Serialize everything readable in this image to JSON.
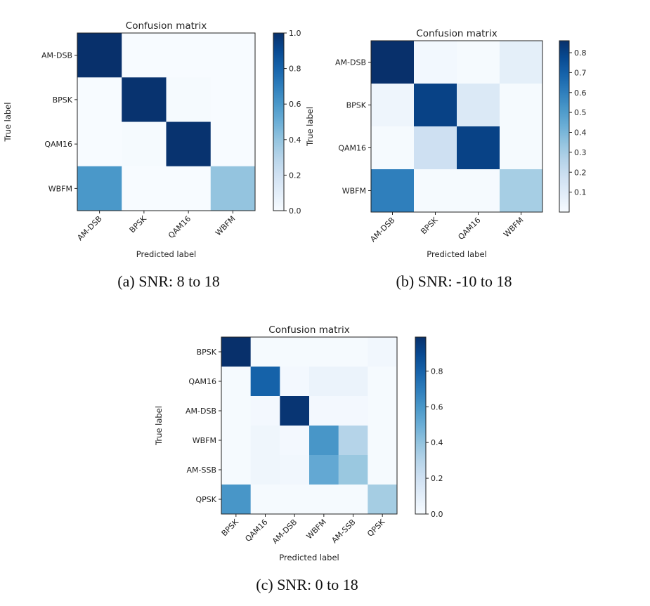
{
  "chart_data": [
    {
      "type": "heatmap",
      "title": "Confusion matrix",
      "xlabel": "Predicted label",
      "ylabel": "True label",
      "caption": "(a) SNR: 8 to 18",
      "rows": [
        "AM-DSB",
        "BPSK",
        "QAM16",
        "WBFM"
      ],
      "cols": [
        "AM-DSB",
        "BPSK",
        "QAM16",
        "WBFM"
      ],
      "values": [
        [
          1.0,
          0.0,
          0.0,
          0.0
        ],
        [
          0.0,
          0.99,
          0.01,
          0.0
        ],
        [
          0.0,
          0.01,
          0.99,
          0.0
        ],
        [
          0.6,
          0.0,
          0.0,
          0.4
        ]
      ],
      "colorbar": {
        "min": 0.0,
        "max": 1.0,
        "ticks": [
          "0.0",
          "0.2",
          "0.4",
          "0.6",
          "0.8",
          "1.0"
        ]
      },
      "colormap": "Blues"
    },
    {
      "type": "heatmap",
      "title": "Confusion matrix",
      "xlabel": "Predicted label",
      "ylabel": "True label",
      "caption": "(b) SNR: -10 to 18",
      "rows": [
        "AM-DSB",
        "BPSK",
        "QAM16",
        "WBFM"
      ],
      "cols": [
        "AM-DSB",
        "BPSK",
        "QAM16",
        "WBFM"
      ],
      "values": [
        [
          0.86,
          0.02,
          0.01,
          0.08
        ],
        [
          0.04,
          0.8,
          0.12,
          0.01
        ],
        [
          0.01,
          0.18,
          0.8,
          0.01
        ],
        [
          0.6,
          0.01,
          0.01,
          0.3
        ]
      ],
      "colorbar": {
        "min": 0.0,
        "max": 0.86,
        "ticks": [
          "0.1",
          "0.2",
          "0.3",
          "0.4",
          "0.5",
          "0.6",
          "0.7",
          "0.8"
        ]
      },
      "colormap": "Blues"
    },
    {
      "type": "heatmap",
      "title": "Confusion matrix",
      "xlabel": "Predicted label",
      "ylabel": "True label",
      "caption": "(c) SNR: 0 to 18",
      "rows": [
        "BPSK",
        "QAM16",
        "AM-DSB",
        "WBFM",
        "AM-SSB",
        "QPSK"
      ],
      "cols": [
        "BPSK",
        "QAM16",
        "AM-DSB",
        "WBFM",
        "AM-SSB",
        "QPSK"
      ],
      "values": [
        [
          0.99,
          0.01,
          0.01,
          0.01,
          0.01,
          0.03
        ],
        [
          0.01,
          0.8,
          0.02,
          0.06,
          0.06,
          0.01
        ],
        [
          0.01,
          0.02,
          0.97,
          0.02,
          0.02,
          0.01
        ],
        [
          0.01,
          0.04,
          0.02,
          0.6,
          0.3,
          0.01
        ],
        [
          0.01,
          0.04,
          0.03,
          0.52,
          0.38,
          0.01
        ],
        [
          0.6,
          0.01,
          0.01,
          0.01,
          0.01,
          0.35
        ]
      ],
      "colorbar": {
        "min": 0.0,
        "max": 0.99,
        "ticks": [
          "0.0",
          "0.2",
          "0.4",
          "0.6",
          "0.8"
        ]
      },
      "colormap": "Blues"
    }
  ]
}
